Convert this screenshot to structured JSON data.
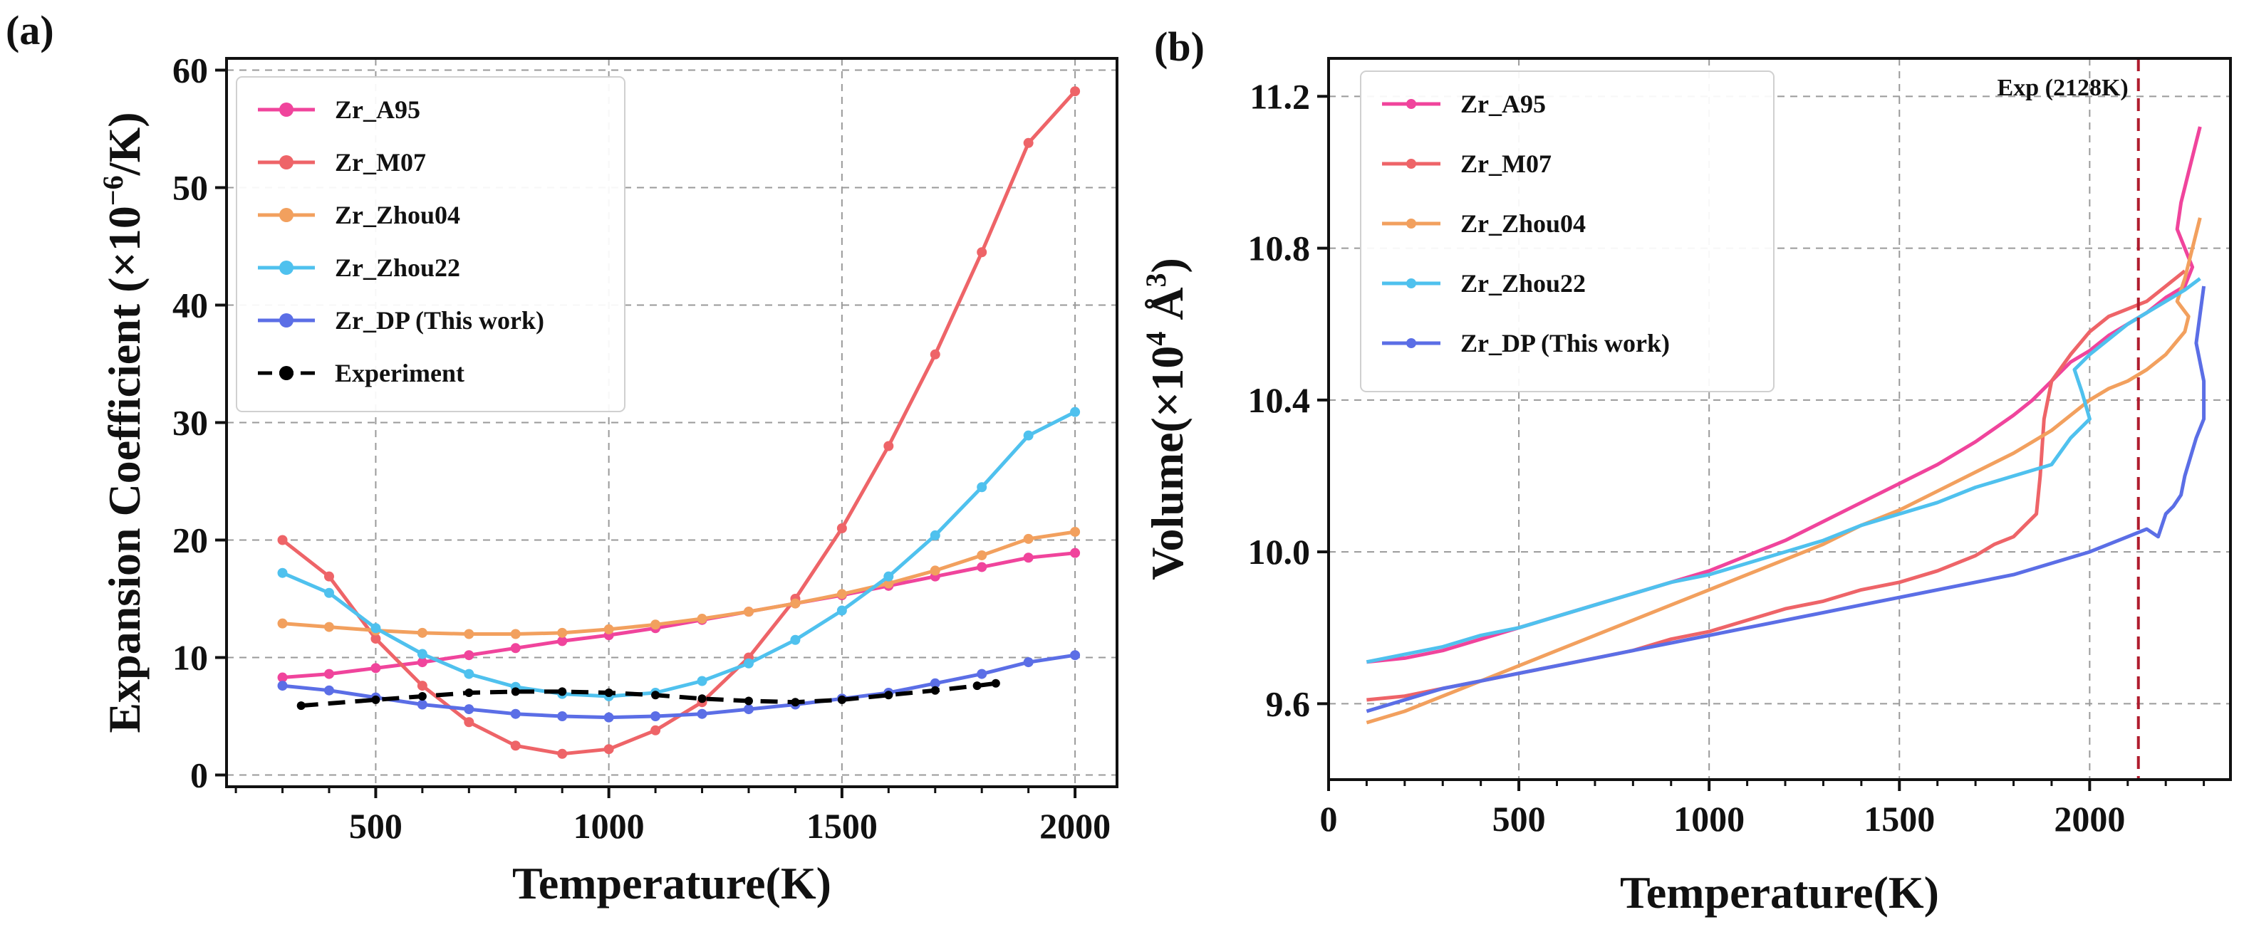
{
  "colors": {
    "A95": "#f0449c",
    "M07": "#ee6468",
    "Zhou04": "#f2a05e",
    "Zhou22": "#4fc1ee",
    "DP": "#5b6ee6",
    "exp": "#000000",
    "exp_line": "#b01c2e"
  },
  "chart_data": [
    {
      "type": "line",
      "panel_label": "(a)",
      "xlabel": "Temperature(K)",
      "ylabel_main": "Expansion Coefficient (×10",
      "ylabel_sup": "−6",
      "ylabel_end": "/K)",
      "xlim": [
        180,
        2090
      ],
      "ylim": [
        -1,
        61
      ],
      "xticks": [
        500,
        1000,
        1500,
        2000
      ],
      "yticks": [
        0,
        10,
        20,
        30,
        40,
        50,
        60
      ],
      "grid": true,
      "legend_position": "top-left",
      "series": [
        {
          "name": "Zr_A95",
          "color_key": "A95",
          "style": "solid",
          "x": [
            300,
            400,
            500,
            600,
            700,
            800,
            900,
            1000,
            1100,
            1200,
            1300,
            1400,
            1500,
            1600,
            1700,
            1800,
            1900,
            2000
          ],
          "y": [
            8.3,
            8.6,
            9.1,
            9.6,
            10.2,
            10.8,
            11.4,
            11.9,
            12.5,
            13.2,
            13.9,
            14.6,
            15.3,
            16.1,
            16.9,
            17.7,
            18.5,
            18.9
          ]
        },
        {
          "name": "Zr_M07",
          "color_key": "M07",
          "style": "solid",
          "x": [
            300,
            400,
            500,
            600,
            700,
            800,
            900,
            1000,
            1100,
            1200,
            1300,
            1400,
            1500,
            1600,
            1700,
            1800,
            1900,
            2000
          ],
          "y": [
            20.0,
            16.9,
            11.6,
            7.6,
            4.5,
            2.5,
            1.8,
            2.2,
            3.8,
            6.2,
            10.0,
            15.0,
            21.0,
            28.0,
            35.8,
            44.5,
            53.8,
            58.2
          ]
        },
        {
          "name": "Zr_Zhou04",
          "color_key": "Zhou04",
          "style": "solid",
          "x": [
            300,
            400,
            500,
            600,
            700,
            800,
            900,
            1000,
            1100,
            1200,
            1300,
            1400,
            1500,
            1600,
            1700,
            1800,
            1900,
            2000
          ],
          "y": [
            12.9,
            12.6,
            12.3,
            12.1,
            12.0,
            12.0,
            12.1,
            12.4,
            12.8,
            13.3,
            13.9,
            14.6,
            15.4,
            16.3,
            17.4,
            18.7,
            20.1,
            20.7
          ]
        },
        {
          "name": "Zr_Zhou22",
          "color_key": "Zhou22",
          "style": "solid",
          "x": [
            300,
            400,
            500,
            600,
            700,
            800,
            900,
            1000,
            1100,
            1200,
            1300,
            1400,
            1500,
            1600,
            1700,
            1800,
            1900,
            2000
          ],
          "y": [
            17.2,
            15.5,
            12.5,
            10.3,
            8.6,
            7.5,
            6.9,
            6.7,
            7.0,
            8.0,
            9.5,
            11.5,
            14.0,
            16.9,
            20.4,
            24.5,
            28.9,
            30.9
          ]
        },
        {
          "name": "Zr_DP (This work)",
          "color_key": "DP",
          "style": "solid",
          "x": [
            300,
            400,
            500,
            600,
            700,
            800,
            900,
            1000,
            1100,
            1200,
            1300,
            1400,
            1500,
            1600,
            1700,
            1800,
            1900,
            2000
          ],
          "y": [
            7.6,
            7.2,
            6.6,
            6.0,
            5.6,
            5.2,
            5.0,
            4.9,
            5.0,
            5.2,
            5.6,
            6.0,
            6.5,
            7.0,
            7.8,
            8.6,
            9.6,
            10.2
          ]
        },
        {
          "name": "Experiment",
          "color_key": "exp",
          "style": "dashed",
          "x": [
            340,
            500,
            600,
            700,
            800,
            900,
            1000,
            1100,
            1200,
            1300,
            1400,
            1500,
            1600,
            1700,
            1790,
            1830
          ],
          "y": [
            5.9,
            6.4,
            6.7,
            7.0,
            7.1,
            7.1,
            7.0,
            6.8,
            6.5,
            6.3,
            6.2,
            6.4,
            6.8,
            7.2,
            7.6,
            7.8
          ]
        }
      ]
    },
    {
      "type": "line",
      "panel_label": "(b)",
      "xlabel": "Temperature(K)",
      "ylabel_main": "Volume(×10",
      "ylabel_sup": "4",
      "ylabel_unit": " Å",
      "ylabel_unit_sup": "3",
      "ylabel_end": ")",
      "xlim": [
        0,
        2370
      ],
      "ylim": [
        9.4,
        11.3
      ],
      "xticks": [
        0,
        500,
        1000,
        1500,
        2000
      ],
      "yticks": [
        9.6,
        10.0,
        10.4,
        10.8,
        11.2
      ],
      "ytick_labels": [
        "9.6",
        "10.0",
        "10.4",
        "10.8",
        "11.2"
      ],
      "grid": true,
      "legend_position": "top-left",
      "annotation": {
        "text": "Exp (2128K)",
        "x": 2128
      },
      "series": [
        {
          "name": "Zr_A95",
          "color_key": "A95",
          "x": [
            100,
            200,
            300,
            400,
            500,
            600,
            700,
            800,
            900,
            1000,
            1100,
            1200,
            1300,
            1400,
            1500,
            1600,
            1700,
            1800,
            1850,
            1900,
            1950,
            2000,
            2050,
            2100,
            2150,
            2200,
            2250,
            2270,
            2250,
            2230,
            2240,
            2260,
            2280,
            2290
          ],
          "y": [
            9.71,
            9.72,
            9.74,
            9.77,
            9.8,
            9.83,
            9.86,
            9.89,
            9.92,
            9.95,
            9.99,
            10.03,
            10.08,
            10.13,
            10.18,
            10.23,
            10.29,
            10.36,
            10.4,
            10.45,
            10.5,
            10.53,
            10.57,
            10.6,
            10.63,
            10.67,
            10.7,
            10.75,
            10.8,
            10.85,
            10.92,
            11.0,
            11.08,
            11.12
          ]
        },
        {
          "name": "Zr_M07",
          "color_key": "M07",
          "x": [
            100,
            200,
            300,
            400,
            500,
            600,
            700,
            800,
            900,
            1000,
            1100,
            1200,
            1300,
            1400,
            1500,
            1600,
            1700,
            1750,
            1800,
            1830,
            1860,
            1870,
            1880,
            1900,
            1950,
            2000,
            2050,
            2100,
            2150,
            2200,
            2250
          ],
          "y": [
            9.61,
            9.62,
            9.64,
            9.66,
            9.68,
            9.7,
            9.72,
            9.74,
            9.77,
            9.79,
            9.82,
            9.85,
            9.87,
            9.9,
            9.92,
            9.95,
            9.99,
            10.02,
            10.04,
            10.07,
            10.1,
            10.2,
            10.35,
            10.45,
            10.52,
            10.58,
            10.62,
            10.64,
            10.66,
            10.7,
            10.74
          ]
        },
        {
          "name": "Zr_Zhou04",
          "color_key": "Zhou04",
          "x": [
            100,
            200,
            300,
            400,
            500,
            600,
            700,
            800,
            900,
            1000,
            1100,
            1200,
            1300,
            1400,
            1500,
            1600,
            1700,
            1800,
            1900,
            1950,
            2000,
            2050,
            2100,
            2150,
            2200,
            2250,
            2260,
            2230,
            2250,
            2270,
            2290
          ],
          "y": [
            9.55,
            9.58,
            9.62,
            9.66,
            9.7,
            9.74,
            9.78,
            9.82,
            9.86,
            9.9,
            9.94,
            9.98,
            10.02,
            10.07,
            10.11,
            10.16,
            10.21,
            10.26,
            10.32,
            10.36,
            10.4,
            10.43,
            10.45,
            10.48,
            10.52,
            10.58,
            10.62,
            10.66,
            10.72,
            10.8,
            10.88
          ]
        },
        {
          "name": "Zr_Zhou22",
          "color_key": "Zhou22",
          "x": [
            100,
            200,
            300,
            400,
            500,
            600,
            700,
            800,
            900,
            1000,
            1100,
            1200,
            1300,
            1400,
            1500,
            1600,
            1700,
            1800,
            1900,
            1950,
            2000,
            1980,
            1960,
            2000,
            2050,
            2100,
            2150,
            2200,
            2250,
            2290
          ],
          "y": [
            9.71,
            9.73,
            9.75,
            9.78,
            9.8,
            9.83,
            9.86,
            9.89,
            9.92,
            9.94,
            9.97,
            10.0,
            10.03,
            10.07,
            10.1,
            10.13,
            10.17,
            10.2,
            10.23,
            10.3,
            10.35,
            10.42,
            10.48,
            10.52,
            10.56,
            10.6,
            10.63,
            10.66,
            10.69,
            10.72
          ]
        },
        {
          "name": "Zr_DP (This work)",
          "color_key": "DP",
          "x": [
            100,
            200,
            300,
            400,
            500,
            600,
            700,
            800,
            900,
            1000,
            1100,
            1200,
            1300,
            1400,
            1500,
            1600,
            1700,
            1800,
            1900,
            2000,
            2100,
            2150,
            2180,
            2200,
            2220,
            2240,
            2250,
            2280,
            2300,
            2300,
            2280,
            2300
          ],
          "y": [
            9.58,
            9.61,
            9.64,
            9.66,
            9.68,
            9.7,
            9.72,
            9.74,
            9.76,
            9.78,
            9.8,
            9.82,
            9.84,
            9.86,
            9.88,
            9.9,
            9.92,
            9.94,
            9.97,
            10.0,
            10.04,
            10.06,
            10.04,
            10.1,
            10.12,
            10.15,
            10.2,
            10.3,
            10.35,
            10.45,
            10.55,
            10.7
          ]
        }
      ]
    }
  ]
}
